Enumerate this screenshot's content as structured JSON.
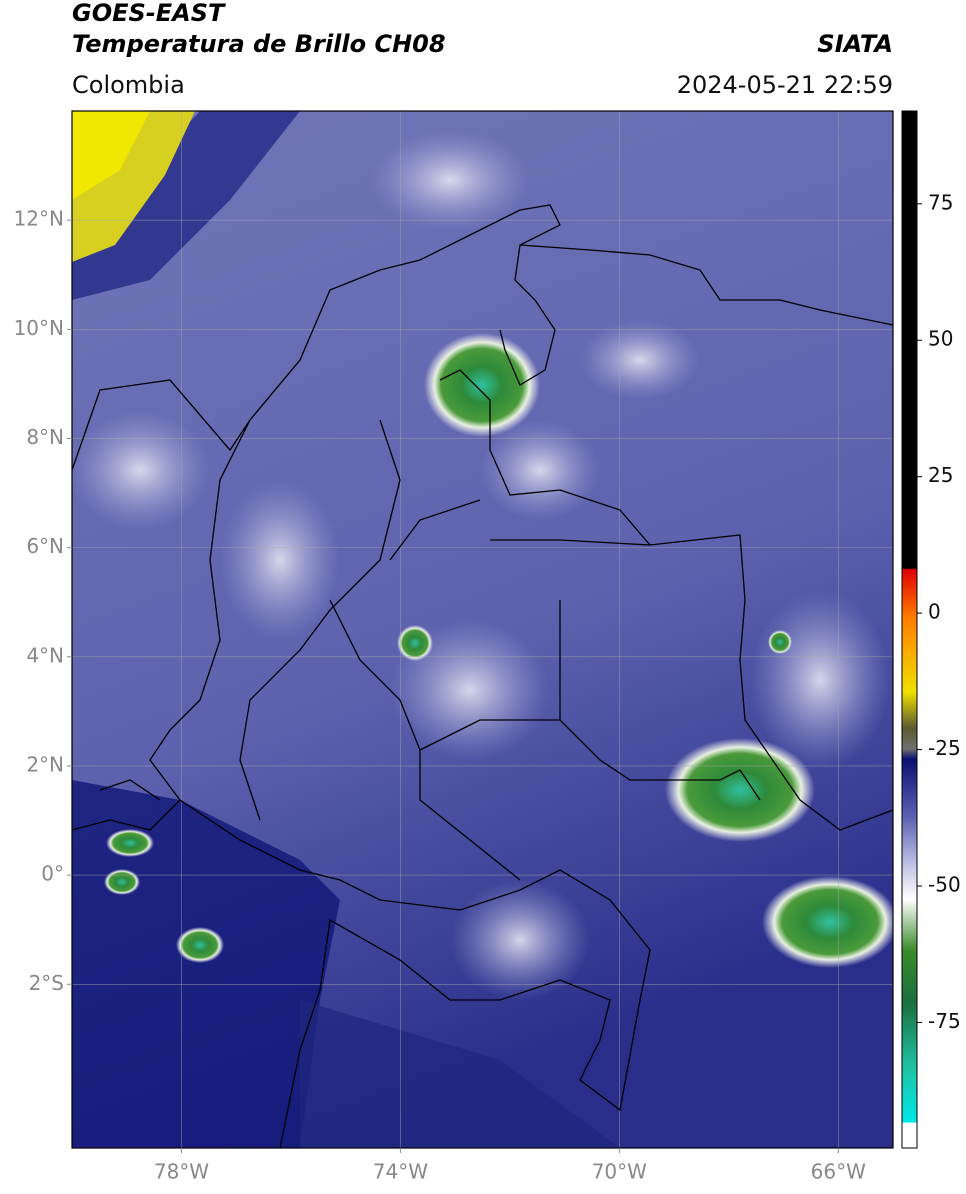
{
  "header": {
    "title": "GOES-EAST",
    "subtitle": "Temperatura de Brillo CH08",
    "source": "SIATA",
    "region": "Colombia",
    "datetime": "2024-05-21 22:59"
  },
  "map": {
    "lon_range": [
      -80,
      -65
    ],
    "lat_range": [
      -5,
      14
    ],
    "lon_ticks": [
      {
        "value": -78,
        "label": "78°W"
      },
      {
        "value": -74,
        "label": "74°W"
      },
      {
        "value": -70,
        "label": "70°W"
      },
      {
        "value": -66,
        "label": "66°W"
      }
    ],
    "lat_ticks": [
      {
        "value": 12,
        "label": "12°N"
      },
      {
        "value": 10,
        "label": "10°N"
      },
      {
        "value": 8,
        "label": "8°N"
      },
      {
        "value": 6,
        "label": "6°N"
      },
      {
        "value": 4,
        "label": "4°N"
      },
      {
        "value": 2,
        "label": "2°N"
      },
      {
        "value": 0,
        "label": "0°"
      },
      {
        "value": -2,
        "label": "2°S"
      }
    ],
    "grid": true
  },
  "colorbar": {
    "range": [
      -98,
      92
    ],
    "ticks": [
      75,
      50,
      25,
      0,
      -25,
      -50,
      -75
    ]
  }
}
